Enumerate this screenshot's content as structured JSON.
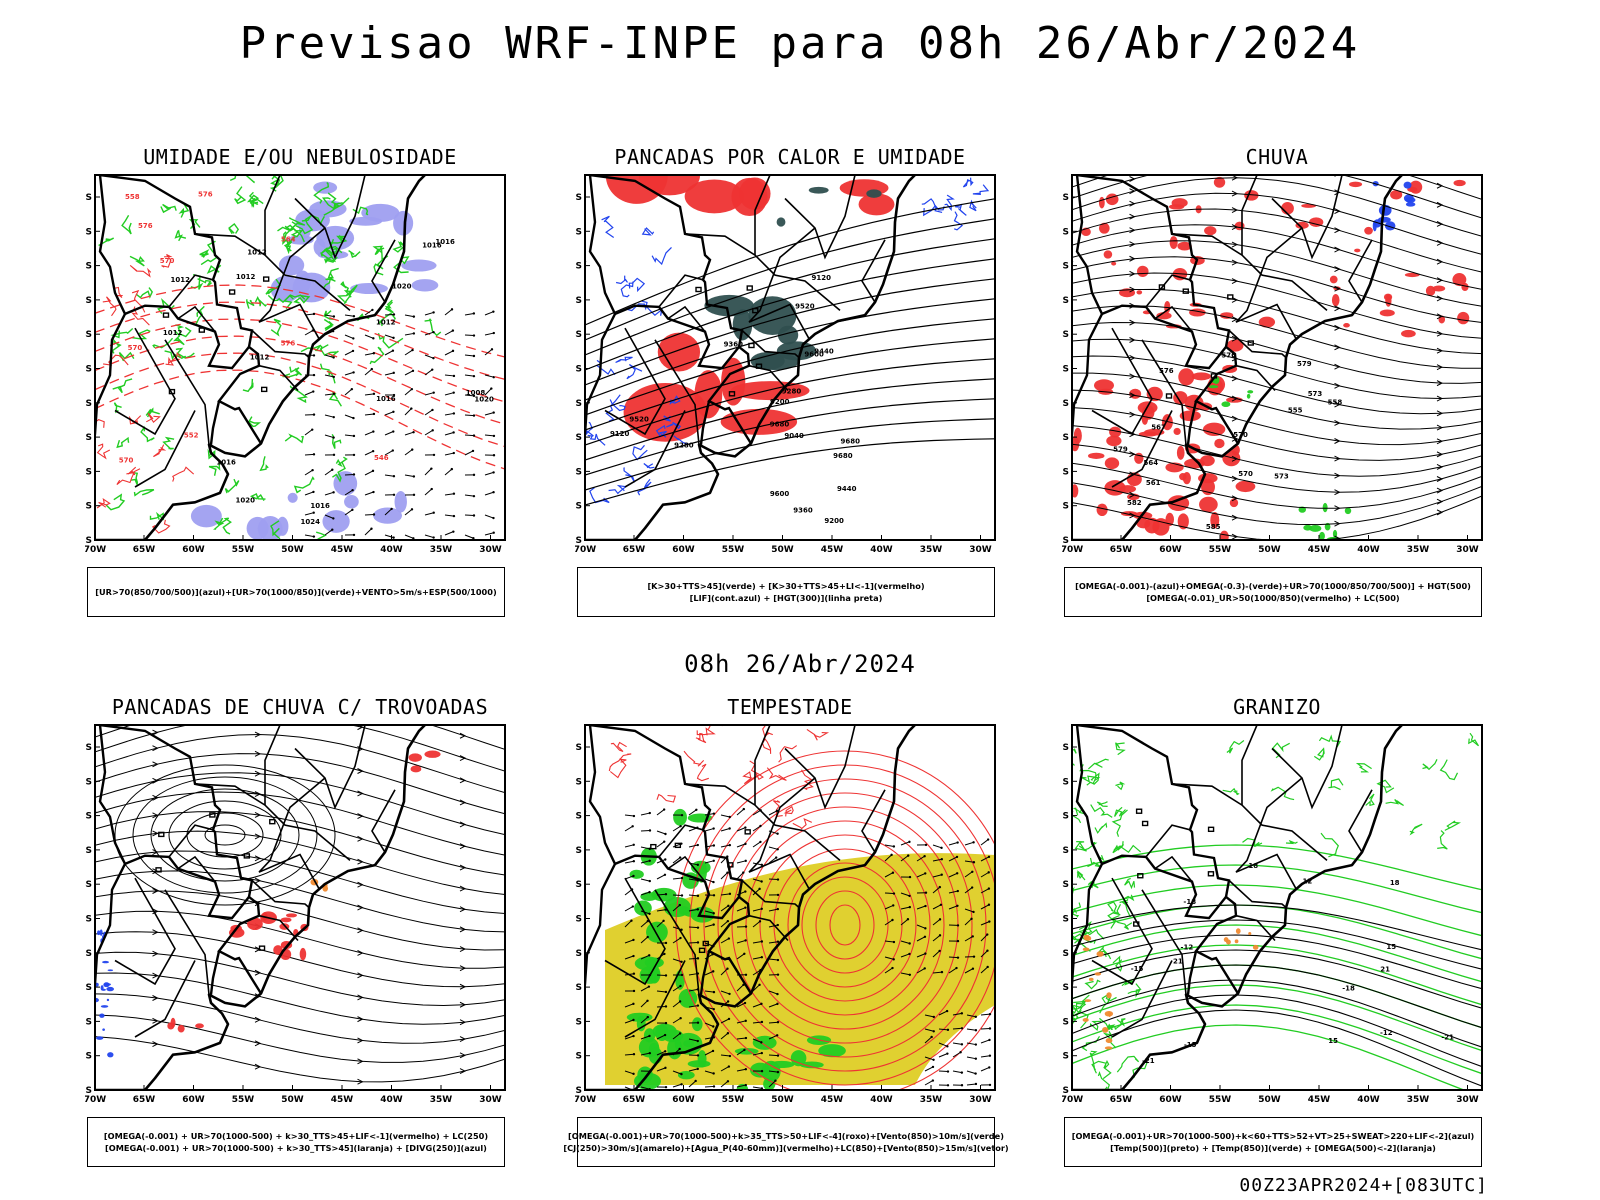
{
  "header": {
    "title": "Previsao WRF-INPE  para 08h 26/Abr/2024",
    "mid_title": "08h 26/Abr/2024",
    "footer": "00Z23APR2024+[083UTC]"
  },
  "axes": {
    "lat_labels": [
      "12S",
      "15S",
      "18S",
      "21S",
      "24S",
      "27S",
      "30S",
      "33S",
      "36S",
      "39S",
      "42S"
    ],
    "lon_labels": [
      "70W",
      "65W",
      "60W",
      "55W",
      "50W",
      "45W",
      "40W",
      "35W",
      "30W"
    ]
  },
  "colors": {
    "green": "#22cc22",
    "red": "#ee3333",
    "blue": "#2244ee",
    "lavender": "#9f9ff0",
    "darkteal": "#2f4f4f",
    "yellow": "#e0d030",
    "orange": "#f08a30",
    "black": "#000000"
  },
  "panels": [
    {
      "id": "umidade",
      "title": "UMIDADE E/OU NEBULOSIDADE",
      "caption": [
        "[UR>70(850/700/500)](azul)+[UR>70(1000/850)](verde)+VENTO>5m/s+ESP(500/1000)"
      ],
      "isolines": [
        "1012",
        "1012",
        "1012",
        "1016",
        "1016",
        "1024",
        "1016",
        "1012",
        "1016",
        "1020",
        "1008",
        "1012",
        "1020",
        "1016",
        "1012",
        "1020"
      ],
      "red_labels": [
        "576",
        "570",
        "576",
        "570",
        "564",
        "558",
        "552",
        "546",
        "576",
        "570"
      ]
    },
    {
      "id": "pancadas-calor",
      "title": "PANCADAS POR CALOR E UMIDADE",
      "caption": [
        "[K>30+TTS>45](verde) + [K>30+TTS>45+LI<-1](vermelho)",
        "[LIF](cont.azul) + [HGT(300)](linha preta)"
      ],
      "isolines": [
        "9680",
        "9680",
        "9600",
        "9680",
        "9600",
        "9520",
        "9440",
        "9360",
        "9440",
        "9360",
        "9280",
        "9200",
        "9120",
        "9040",
        "9280",
        "9200",
        "9120",
        "9520"
      ]
    },
    {
      "id": "chuva",
      "title": "CHUVA",
      "caption": [
        "[OMEGA(-0.001)-(azul)+OMEGA(-0.3)-(verde)+UR>70(1000/850/700/500)] + HGT(500)",
        "[OMEGA(-0.01)_UR>50(1000/850)(vermelho) + LC(500)"
      ],
      "isolines": [
        "582",
        "579",
        "576",
        "573",
        "570",
        "567",
        "564",
        "561",
        "558",
        "555",
        "579",
        "576",
        "573",
        "570",
        "585"
      ]
    },
    {
      "id": "pancadas-trovoadas",
      "title": "PANCADAS DE CHUVA C/ TROVOADAS",
      "caption": [
        "[OMEGA(-0.001) + UR>70(1000-500) + k>30_TTS>45+LIF<-1](vermelho) + LC(250)",
        "[OMEGA(-0.001) + UR>70(1000-500) + k>30_TTS>45](laranja) + [DIVG(250)](azul)"
      ]
    },
    {
      "id": "tempestade",
      "title": "TEMPESTADE",
      "caption": [
        "[OMEGA(-0.001)+UR>70(1000-500)+k>35_TTS>50+LIF<-4](roxo)+[Vento(850)>10m/s](verde)",
        "[CJ(250)>30m/s](amarelo)+[Agua_P(40-60mm)](vermelho)+LC(850)+[Vento(850)>15m/s](vetor)"
      ]
    },
    {
      "id": "granizo",
      "title": "GRANIZO",
      "caption": [
        "[OMEGA(-0.001)+UR>70(1000-500)+k<60+TTS>52+VT>25+SWEAT>220+LIF<-2](azul)",
        "[Temp(500)](preto) + [Temp(850)](verde) + [OMEGA(500)<-2](laranja)"
      ],
      "isolines": [
        "-12",
        "-15",
        "-12",
        "-15",
        "-18",
        "-21",
        "-18",
        "-21",
        "15",
        "18",
        "21",
        "15",
        "12",
        "18",
        "21"
      ]
    }
  ]
}
